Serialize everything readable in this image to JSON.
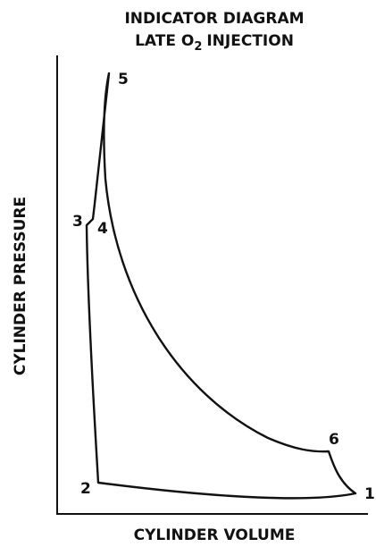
{
  "title": {
    "line1": "INDICATOR DIAGRAM",
    "line2": {
      "text": "LATE O",
      "subscript": "2",
      "rest": "INJECTION"
    }
  },
  "axes": {
    "y_label": "CYLINDER PRESSURE",
    "x_label": "CYLINDER VOLUME"
  },
  "points": [
    "1",
    "2",
    "3",
    "4",
    "5",
    "6"
  ]
}
